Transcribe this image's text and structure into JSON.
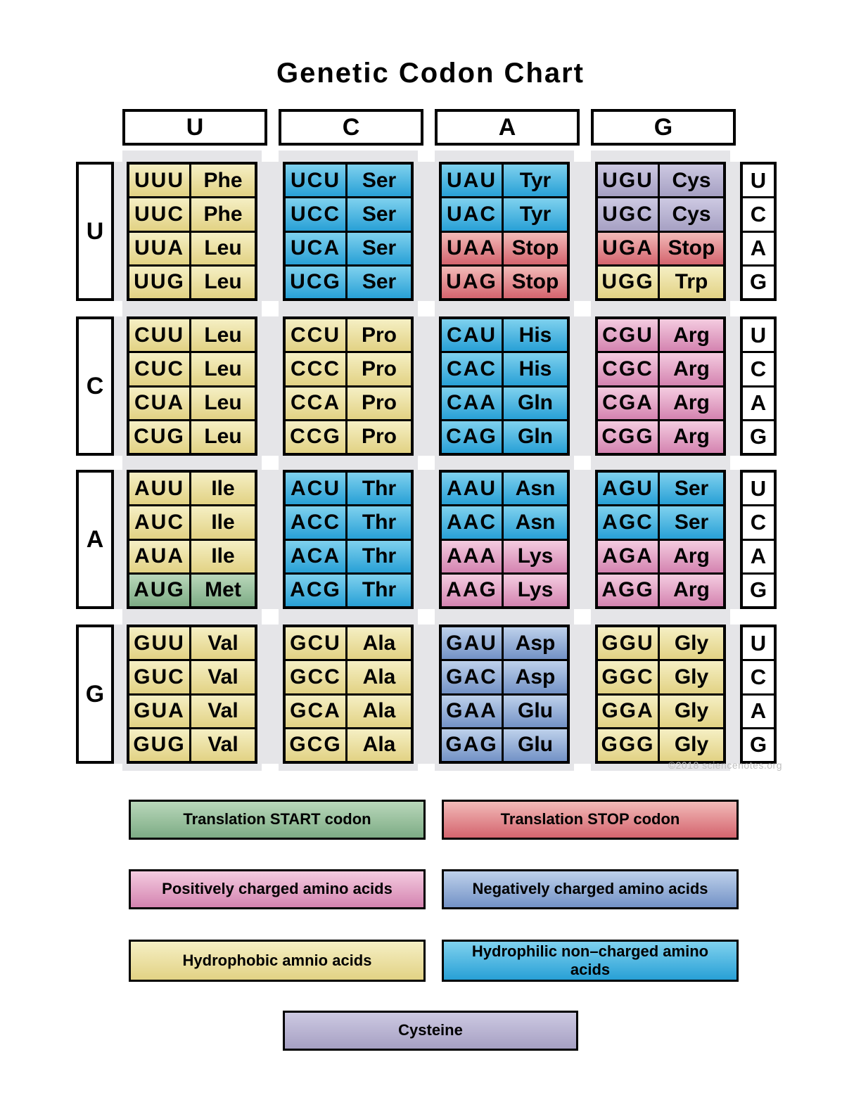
{
  "title": "Genetic Codon Chart",
  "watermark": "©2018 sciencenotes.org",
  "colors": {
    "hydrophobic": {
      "top": "#f5efc4",
      "bottom": "#e2d284"
    },
    "hydrophilic": {
      "top": "#7fd1ee",
      "bottom": "#28a0d6"
    },
    "positive": {
      "top": "#f4cce0",
      "bottom": "#d483b0"
    },
    "negative": {
      "top": "#bed1eb",
      "bottom": "#7392c6"
    },
    "stop": {
      "top": "#f2bab8",
      "bottom": "#d4646e"
    },
    "start": {
      "top": "#b9d7ba",
      "bottom": "#7dac85"
    },
    "cysteine": {
      "top": "#cdc9e2",
      "bottom": "#a6a0c3"
    },
    "band_gray": "#e5e5e8"
  },
  "legend": [
    {
      "label": "Translation START codon",
      "type": "start"
    },
    {
      "label": "Translation STOP codon",
      "type": "stop"
    },
    {
      "label": "Positively charged amino acids",
      "type": "positive"
    },
    {
      "label": "Negatively charged amino acids",
      "type": "negative"
    },
    {
      "label": "Hydrophobic amnio acids",
      "type": "hydrophobic"
    },
    {
      "label": "Hydrophilic non–charged amino acids",
      "type": "hydrophilic"
    },
    {
      "label": "Cysteine",
      "type": "cysteine"
    }
  ],
  "chart_data": {
    "type": "table",
    "title": "Genetic Codon Chart",
    "column_headers_second_base": [
      "U",
      "C",
      "A",
      "G"
    ],
    "row_headers_first_base": [
      "U",
      "C",
      "A",
      "G"
    ],
    "third_base_order": [
      "U",
      "C",
      "A",
      "G"
    ],
    "codon_groups": [
      [
        [
          {
            "codon": "UUU",
            "aa": "Phe",
            "type": "hydrophobic"
          },
          {
            "codon": "UUC",
            "aa": "Phe",
            "type": "hydrophobic"
          },
          {
            "codon": "UUA",
            "aa": "Leu",
            "type": "hydrophobic"
          },
          {
            "codon": "UUG",
            "aa": "Leu",
            "type": "hydrophobic"
          }
        ],
        [
          {
            "codon": "UCU",
            "aa": "Ser",
            "type": "hydrophilic"
          },
          {
            "codon": "UCC",
            "aa": "Ser",
            "type": "hydrophilic"
          },
          {
            "codon": "UCA",
            "aa": "Ser",
            "type": "hydrophilic"
          },
          {
            "codon": "UCG",
            "aa": "Ser",
            "type": "hydrophilic"
          }
        ],
        [
          {
            "codon": "UAU",
            "aa": "Tyr",
            "type": "hydrophilic"
          },
          {
            "codon": "UAC",
            "aa": "Tyr",
            "type": "hydrophilic"
          },
          {
            "codon": "UAA",
            "aa": "Stop",
            "type": "stop"
          },
          {
            "codon": "UAG",
            "aa": "Stop",
            "type": "stop"
          }
        ],
        [
          {
            "codon": "UGU",
            "aa": "Cys",
            "type": "cysteine"
          },
          {
            "codon": "UGC",
            "aa": "Cys",
            "type": "cysteine"
          },
          {
            "codon": "UGA",
            "aa": "Stop",
            "type": "stop"
          },
          {
            "codon": "UGG",
            "aa": "Trp",
            "type": "hydrophobic"
          }
        ]
      ],
      [
        [
          {
            "codon": "CUU",
            "aa": "Leu",
            "type": "hydrophobic"
          },
          {
            "codon": "CUC",
            "aa": "Leu",
            "type": "hydrophobic"
          },
          {
            "codon": "CUA",
            "aa": "Leu",
            "type": "hydrophobic"
          },
          {
            "codon": "CUG",
            "aa": "Leu",
            "type": "hydrophobic"
          }
        ],
        [
          {
            "codon": "CCU",
            "aa": "Pro",
            "type": "hydrophobic"
          },
          {
            "codon": "CCC",
            "aa": "Pro",
            "type": "hydrophobic"
          },
          {
            "codon": "CCA",
            "aa": "Pro",
            "type": "hydrophobic"
          },
          {
            "codon": "CCG",
            "aa": "Pro",
            "type": "hydrophobic"
          }
        ],
        [
          {
            "codon": "CAU",
            "aa": "His",
            "type": "hydrophilic"
          },
          {
            "codon": "CAC",
            "aa": "His",
            "type": "hydrophilic"
          },
          {
            "codon": "CAA",
            "aa": "Gln",
            "type": "hydrophilic"
          },
          {
            "codon": "CAG",
            "aa": "Gln",
            "type": "hydrophilic"
          }
        ],
        [
          {
            "codon": "CGU",
            "aa": "Arg",
            "type": "positive"
          },
          {
            "codon": "CGC",
            "aa": "Arg",
            "type": "positive"
          },
          {
            "codon": "CGA",
            "aa": "Arg",
            "type": "positive"
          },
          {
            "codon": "CGG",
            "aa": "Arg",
            "type": "positive"
          }
        ]
      ],
      [
        [
          {
            "codon": "AUU",
            "aa": "Ile",
            "type": "hydrophobic"
          },
          {
            "codon": "AUC",
            "aa": "Ile",
            "type": "hydrophobic"
          },
          {
            "codon": "AUA",
            "aa": "Ile",
            "type": "hydrophobic"
          },
          {
            "codon": "AUG",
            "aa": "Met",
            "type": "start"
          }
        ],
        [
          {
            "codon": "ACU",
            "aa": "Thr",
            "type": "hydrophilic"
          },
          {
            "codon": "ACC",
            "aa": "Thr",
            "type": "hydrophilic"
          },
          {
            "codon": "ACA",
            "aa": "Thr",
            "type": "hydrophilic"
          },
          {
            "codon": "ACG",
            "aa": "Thr",
            "type": "hydrophilic"
          }
        ],
        [
          {
            "codon": "AAU",
            "aa": "Asn",
            "type": "hydrophilic"
          },
          {
            "codon": "AAC",
            "aa": "Asn",
            "type": "hydrophilic"
          },
          {
            "codon": "AAA",
            "aa": "Lys",
            "type": "positive"
          },
          {
            "codon": "AAG",
            "aa": "Lys",
            "type": "positive"
          }
        ],
        [
          {
            "codon": "AGU",
            "aa": "Ser",
            "type": "hydrophilic"
          },
          {
            "codon": "AGC",
            "aa": "Ser",
            "type": "hydrophilic"
          },
          {
            "codon": "AGA",
            "aa": "Arg",
            "type": "positive"
          },
          {
            "codon": "AGG",
            "aa": "Arg",
            "type": "positive"
          }
        ]
      ],
      [
        [
          {
            "codon": "GUU",
            "aa": "Val",
            "type": "hydrophobic"
          },
          {
            "codon": "GUC",
            "aa": "Val",
            "type": "hydrophobic"
          },
          {
            "codon": "GUA",
            "aa": "Val",
            "type": "hydrophobic"
          },
          {
            "codon": "GUG",
            "aa": "Val",
            "type": "hydrophobic"
          }
        ],
        [
          {
            "codon": "GCU",
            "aa": "Ala",
            "type": "hydrophobic"
          },
          {
            "codon": "GCC",
            "aa": "Ala",
            "type": "hydrophobic"
          },
          {
            "codon": "GCA",
            "aa": "Ala",
            "type": "hydrophobic"
          },
          {
            "codon": "GCG",
            "aa": "Ala",
            "type": "hydrophobic"
          }
        ],
        [
          {
            "codon": "GAU",
            "aa": "Asp",
            "type": "negative"
          },
          {
            "codon": "GAC",
            "aa": "Asp",
            "type": "negative"
          },
          {
            "codon": "GAA",
            "aa": "Glu",
            "type": "negative"
          },
          {
            "codon": "GAG",
            "aa": "Glu",
            "type": "negative"
          }
        ],
        [
          {
            "codon": "GGU",
            "aa": "Gly",
            "type": "hydrophobic"
          },
          {
            "codon": "GGC",
            "aa": "Gly",
            "type": "hydrophobic"
          },
          {
            "codon": "GGA",
            "aa": "Gly",
            "type": "hydrophobic"
          },
          {
            "codon": "GGG",
            "aa": "Gly",
            "type": "hydrophobic"
          }
        ]
      ]
    ]
  }
}
